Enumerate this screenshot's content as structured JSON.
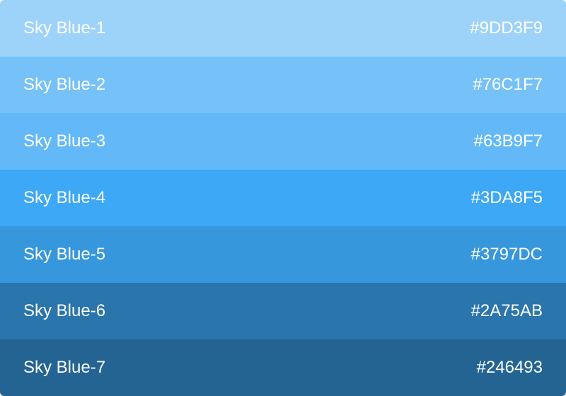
{
  "palette": {
    "swatches": [
      {
        "name": "Sky Blue-1",
        "hex": "#9DD3F9",
        "color": "#9DD3F9"
      },
      {
        "name": "Sky Blue-2",
        "hex": "#76C1F7",
        "color": "#76C1F7"
      },
      {
        "name": "Sky Blue-3",
        "hex": "#63B9F7",
        "color": "#63B9F7"
      },
      {
        "name": "Sky Blue-4",
        "hex": "#3DA8F5",
        "color": "#3DA8F5"
      },
      {
        "name": "Sky Blue-5",
        "hex": "#3797DC",
        "color": "#3797DC"
      },
      {
        "name": "Sky Blue-6",
        "hex": "#2A75AB",
        "color": "#2A75AB"
      },
      {
        "name": "Sky Blue-7",
        "hex": "#246493",
        "color": "#246493"
      }
    ]
  }
}
